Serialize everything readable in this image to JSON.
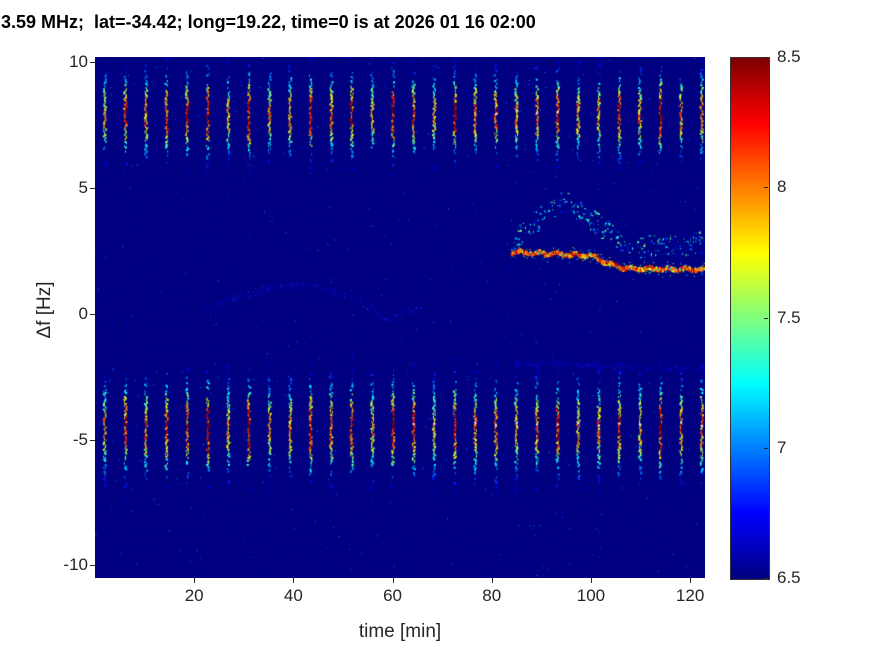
{
  "chart_data": {
    "type": "heatmap",
    "title": "3.59 MHz;  lat=-34.42; long=19.22, time=0 is at 2026 01 16 02:00",
    "xlabel": "time [min]",
    "ylabel": "Δf [Hz]",
    "xlim": [
      0,
      123
    ],
    "ylim": [
      -10.5,
      10.2
    ],
    "x_ticks": [
      20,
      40,
      60,
      80,
      100,
      120
    ],
    "y_ticks": [
      -10,
      -5,
      0,
      5,
      10
    ],
    "colormap": "jet",
    "background_value": 6.5,
    "colors": {
      "figure_background": "#ffffff",
      "heatmap_background": "#000086",
      "axis_text": "#262626",
      "title_text": "#000000"
    },
    "colorbar": {
      "min": 6.5,
      "max": 8.5,
      "ticks": [
        6.5,
        7,
        7.5,
        8,
        8.5
      ],
      "position": "right"
    },
    "features": {
      "pulse_train": {
        "description": "periodic vertical streaks every ~4 min across full record",
        "x_start": 2,
        "x_step": 4.15,
        "x_end": 122.8,
        "bands": [
          {
            "y_center": 7.9,
            "y_sigma": 1.0,
            "peak_value": 8.5
          },
          {
            "y_center": -4.55,
            "y_sigma": 1.15,
            "peak_value": 8.5
          }
        ],
        "white_dots": [
          {
            "y": -4.4,
            "x_min": 62,
            "x_max": 123,
            "prob": 0.8
          },
          {
            "y": 8.0,
            "x_min": 64,
            "x_max": 96,
            "prob": 0.45
          }
        ]
      },
      "main_trace": {
        "description": "strong red Doppler trace near +2 Hz after t=84 min",
        "points": [
          [
            84,
            2.45
          ],
          [
            95,
            2.35
          ],
          [
            100,
            2.3
          ],
          [
            104,
            1.95
          ],
          [
            107,
            1.8
          ],
          [
            123,
            1.75
          ]
        ],
        "value_range": [
          7.8,
          8.5
        ]
      },
      "arc_scatter": {
        "description": "diffuse cyan arc above main trace peaking ~4.5 Hz at ~95 min",
        "points": [
          [
            84,
            2.9
          ],
          [
            90,
            3.8
          ],
          [
            95,
            4.5
          ],
          [
            101,
            3.6
          ],
          [
            108,
            2.6
          ],
          [
            115,
            2.7
          ],
          [
            123,
            2.8
          ]
        ],
        "count": 260,
        "jitter": 0.45,
        "value_range": [
          6.7,
          7.55
        ]
      },
      "drift_trace": {
        "description": "faint drifting trace near 0-1 Hz between 20 and 66 min",
        "points": [
          [
            22,
            0.2
          ],
          [
            28,
            0.6
          ],
          [
            34,
            0.95
          ],
          [
            40,
            1.1
          ],
          [
            46,
            1.0
          ],
          [
            52,
            0.6
          ],
          [
            56,
            0.15
          ],
          [
            59,
            -0.2
          ],
          [
            62,
            0.05
          ],
          [
            66,
            0.2
          ]
        ],
        "value_range": [
          6.58,
          6.9
        ]
      },
      "low_trace": {
        "description": "very faint trace near -2 Hz after 84 min",
        "points": [
          [
            84,
            -2.0
          ],
          [
            100,
            -2.05
          ],
          [
            110,
            -2.15
          ],
          [
            123,
            -2.2
          ]
        ],
        "value_range": [
          6.55,
          6.8
        ]
      }
    }
  }
}
